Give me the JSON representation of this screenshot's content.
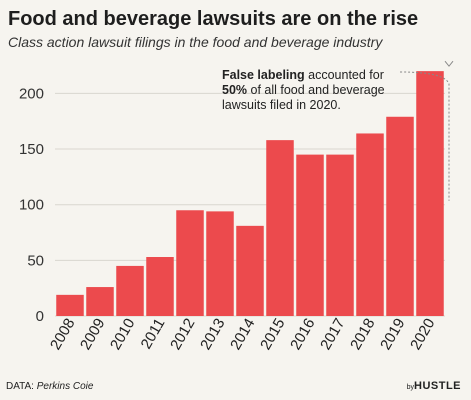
{
  "header": {
    "title": "Food and beverage lawsuits are on the rise",
    "subtitle": "Class action lawsuit filings in the food and beverage industry"
  },
  "annotation": {
    "bold_1": "False labeling",
    "text_1": " accounted for",
    "bold_2": "50%",
    "text_2": " of all food and beverage",
    "text_3": "lawsuits filed in 2020."
  },
  "footer": {
    "source_prefix": "DATA:",
    "source_name": "Perkins Coie",
    "logo_prefix": "by",
    "logo_brand": "HUSTLE"
  },
  "chart_data": {
    "type": "bar",
    "title": "Food and beverage lawsuits are on the rise",
    "subtitle": "Class action lawsuit filings in the food and beverage industry",
    "xlabel": "",
    "ylabel": "",
    "categories": [
      "2008",
      "2009",
      "2010",
      "2011",
      "2012",
      "2013",
      "2014",
      "2015",
      "2016",
      "2017",
      "2018",
      "2019",
      "2020"
    ],
    "values": [
      19,
      26,
      45,
      53,
      95,
      94,
      81,
      158,
      145,
      145,
      164,
      179,
      220
    ],
    "ylim": [
      0,
      230
    ],
    "yticks": [
      0,
      50,
      100,
      150,
      200
    ],
    "grid": true,
    "bar_color": "#ec4a4d",
    "grid_color": "#d9d6cf"
  }
}
